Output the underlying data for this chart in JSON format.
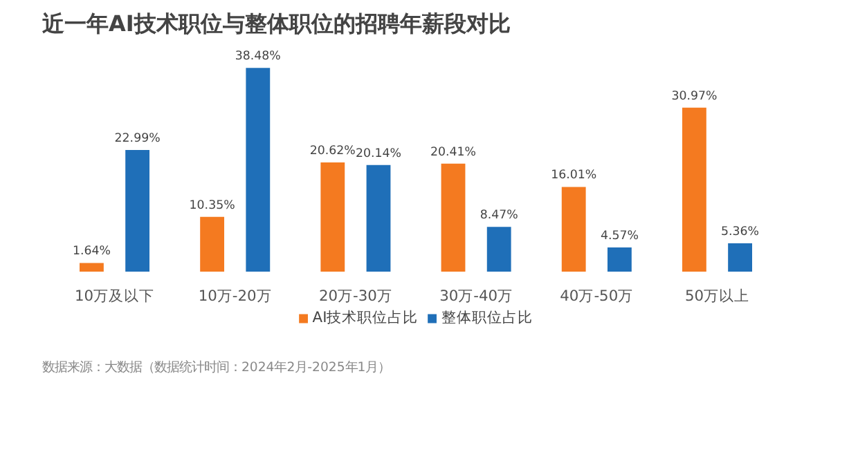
{
  "chart_data": {
    "type": "bar",
    "title": "近一年AI技术职位与整体职位的招聘年薪段对比",
    "categories": [
      "10万及以下",
      "10万-20万",
      "20万-30万",
      "30万-40万",
      "40万-50万",
      "50万以上"
    ],
    "series": [
      {
        "name": "AI技术职位占比",
        "color": "#f47a20",
        "values": [
          1.64,
          10.35,
          20.62,
          20.41,
          16.01,
          30.97
        ],
        "value_labels": [
          "1.64%",
          "10.35%",
          "20.62%",
          "20.41%",
          "16.01%",
          "30.97%"
        ]
      },
      {
        "name": "整体职位占比",
        "color": "#1f6fb8",
        "values": [
          22.99,
          38.48,
          20.14,
          8.47,
          4.57,
          5.36
        ],
        "value_labels": [
          "22.99%",
          "38.48%",
          "20.14%",
          "8.47%",
          "4.57%",
          "5.36%"
        ]
      }
    ],
    "legend": "bottom",
    "annotations": [
      "数据来源：大数据（数据统计时间：2024年2月-2025年1月）"
    ]
  }
}
